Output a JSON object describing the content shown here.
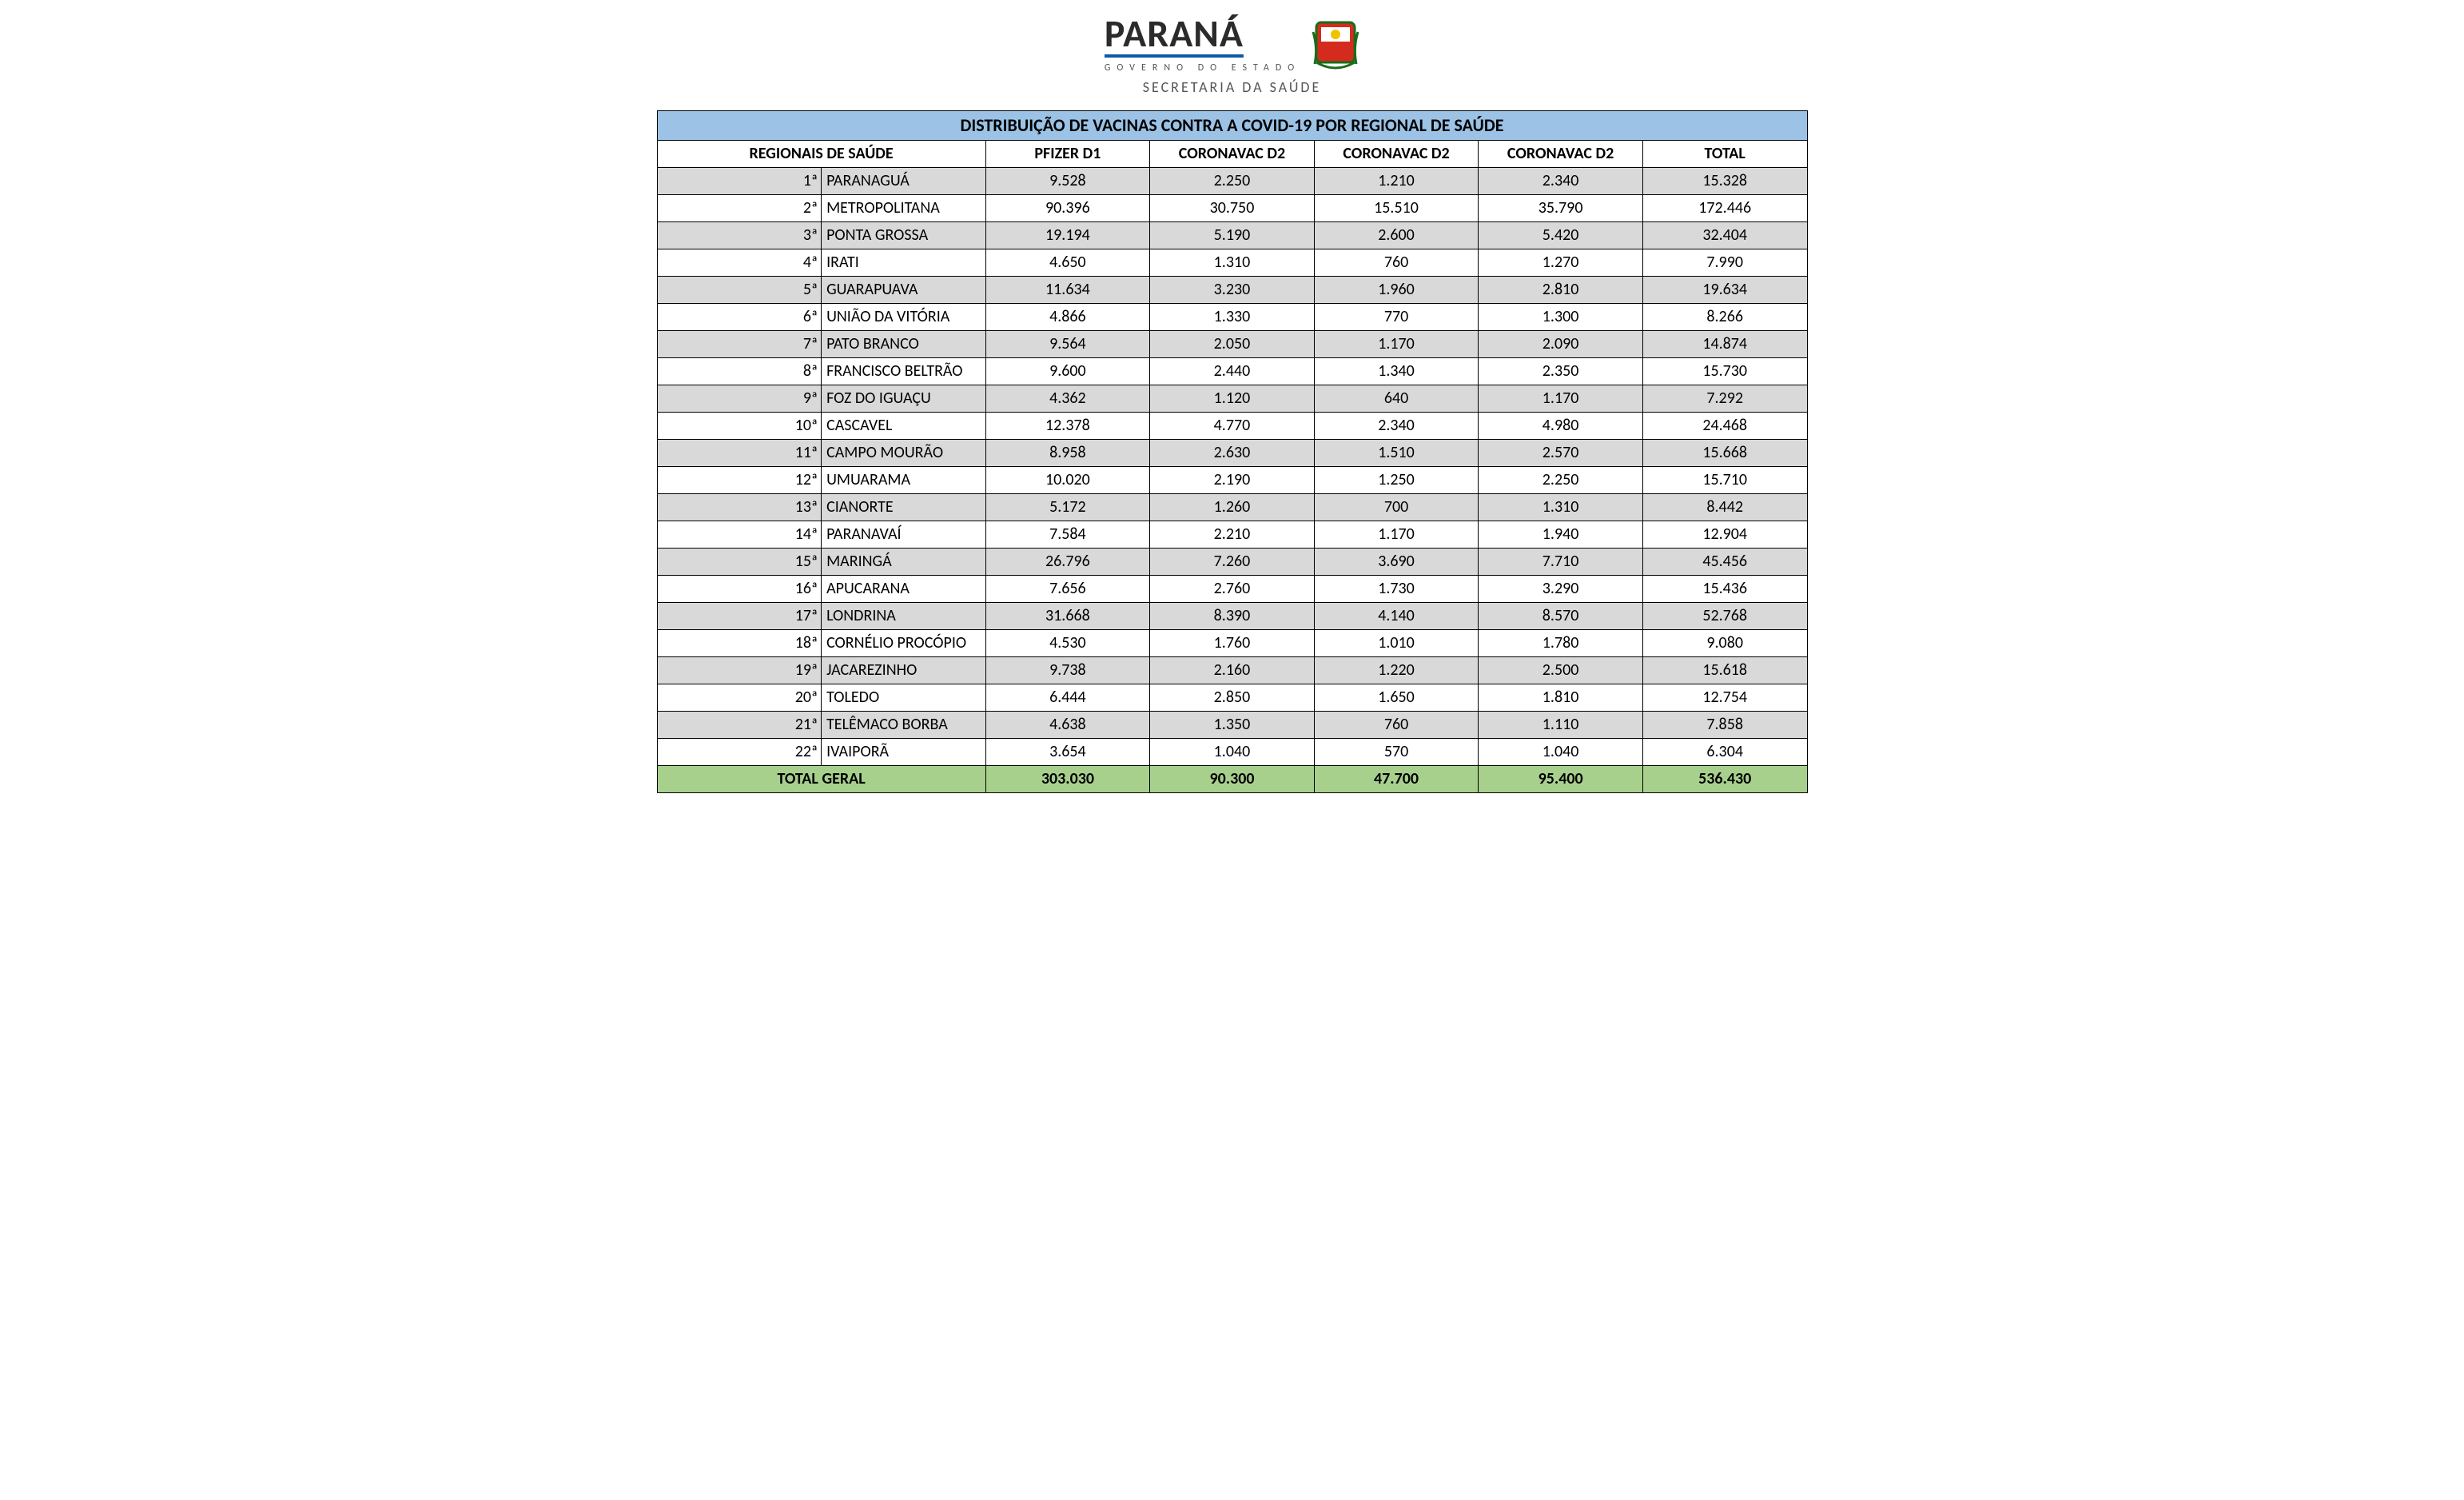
{
  "logo": {
    "main": "PARANÁ",
    "sub": "GOVERNO DO ESTADO",
    "dept": "SECRETARIA DA SAÚDE"
  },
  "table": {
    "type": "table",
    "title": "DISTRIBUIÇÃO DE VACINAS CONTRA A COVID-19 POR REGIONAL DE SAÚDE",
    "title_bg": "#9cc3e6",
    "header_bg": "#ffffff",
    "row_odd_bg": "#d9d9d9",
    "row_even_bg": "#ffffff",
    "total_bg": "#a8d08d",
    "border_color": "#000000",
    "font_family": "Calibri",
    "title_fontsize": 22,
    "cell_fontsize": 20,
    "columns": {
      "region_header": "REGIONAIS DE SAÚDE",
      "c1": "PFIZER D1",
      "c2": "CORONAVAC D2",
      "c3": "CORONAVAC D2",
      "c4": "CORONAVAC D2",
      "c5": "TOTAL"
    },
    "rows": [
      {
        "n": "1ª",
        "name": "PARANAGUÁ",
        "v": [
          "9.528",
          "2.250",
          "1.210",
          "2.340",
          "15.328"
        ]
      },
      {
        "n": "2ª",
        "name": "METROPOLITANA",
        "v": [
          "90.396",
          "30.750",
          "15.510",
          "35.790",
          "172.446"
        ]
      },
      {
        "n": "3ª",
        "name": "PONTA GROSSA",
        "v": [
          "19.194",
          "5.190",
          "2.600",
          "5.420",
          "32.404"
        ]
      },
      {
        "n": "4ª",
        "name": "IRATI",
        "v": [
          "4.650",
          "1.310",
          "760",
          "1.270",
          "7.990"
        ]
      },
      {
        "n": "5ª",
        "name": "GUARAPUAVA",
        "v": [
          "11.634",
          "3.230",
          "1.960",
          "2.810",
          "19.634"
        ]
      },
      {
        "n": "6ª",
        "name": "UNIÃO DA VITÓRIA",
        "v": [
          "4.866",
          "1.330",
          "770",
          "1.300",
          "8.266"
        ]
      },
      {
        "n": "7ª",
        "name": "PATO BRANCO",
        "v": [
          "9.564",
          "2.050",
          "1.170",
          "2.090",
          "14.874"
        ]
      },
      {
        "n": "8ª",
        "name": "FRANCISCO BELTRÃO",
        "v": [
          "9.600",
          "2.440",
          "1.340",
          "2.350",
          "15.730"
        ]
      },
      {
        "n": "9ª",
        "name": "FOZ DO IGUAÇU",
        "v": [
          "4.362",
          "1.120",
          "640",
          "1.170",
          "7.292"
        ]
      },
      {
        "n": "10ª",
        "name": "CASCAVEL",
        "v": [
          "12.378",
          "4.770",
          "2.340",
          "4.980",
          "24.468"
        ]
      },
      {
        "n": "11ª",
        "name": "CAMPO MOURÃO",
        "v": [
          "8.958",
          "2.630",
          "1.510",
          "2.570",
          "15.668"
        ]
      },
      {
        "n": "12ª",
        "name": "UMUARAMA",
        "v": [
          "10.020",
          "2.190",
          "1.250",
          "2.250",
          "15.710"
        ]
      },
      {
        "n": "13ª",
        "name": "CIANORTE",
        "v": [
          "5.172",
          "1.260",
          "700",
          "1.310",
          "8.442"
        ]
      },
      {
        "n": "14ª",
        "name": "PARANAVAÍ",
        "v": [
          "7.584",
          "2.210",
          "1.170",
          "1.940",
          "12.904"
        ]
      },
      {
        "n": "15ª",
        "name": "MARINGÁ",
        "v": [
          "26.796",
          "7.260",
          "3.690",
          "7.710",
          "45.456"
        ]
      },
      {
        "n": "16ª",
        "name": "APUCARANA",
        "v": [
          "7.656",
          "2.760",
          "1.730",
          "3.290",
          "15.436"
        ]
      },
      {
        "n": "17ª",
        "name": "LONDRINA",
        "v": [
          "31.668",
          "8.390",
          "4.140",
          "8.570",
          "52.768"
        ]
      },
      {
        "n": "18ª",
        "name": "CORNÉLIO PROCÓPIO",
        "v": [
          "4.530",
          "1.760",
          "1.010",
          "1.780",
          "9.080"
        ]
      },
      {
        "n": "19ª",
        "name": "JACAREZINHO",
        "v": [
          "9.738",
          "2.160",
          "1.220",
          "2.500",
          "15.618"
        ]
      },
      {
        "n": "20ª",
        "name": "TOLEDO",
        "v": [
          "6.444",
          "2.850",
          "1.650",
          "1.810",
          "12.754"
        ]
      },
      {
        "n": "21ª",
        "name": "TELÊMACO BORBA",
        "v": [
          "4.638",
          "1.350",
          "760",
          "1.110",
          "7.858"
        ]
      },
      {
        "n": "22ª",
        "name": "IVAIPORÃ",
        "v": [
          "3.654",
          "1.040",
          "570",
          "1.040",
          "6.304"
        ]
      }
    ],
    "total": {
      "label": "TOTAL GERAL",
      "v": [
        "303.030",
        "90.300",
        "47.700",
        "95.400",
        "536.430"
      ]
    }
  }
}
